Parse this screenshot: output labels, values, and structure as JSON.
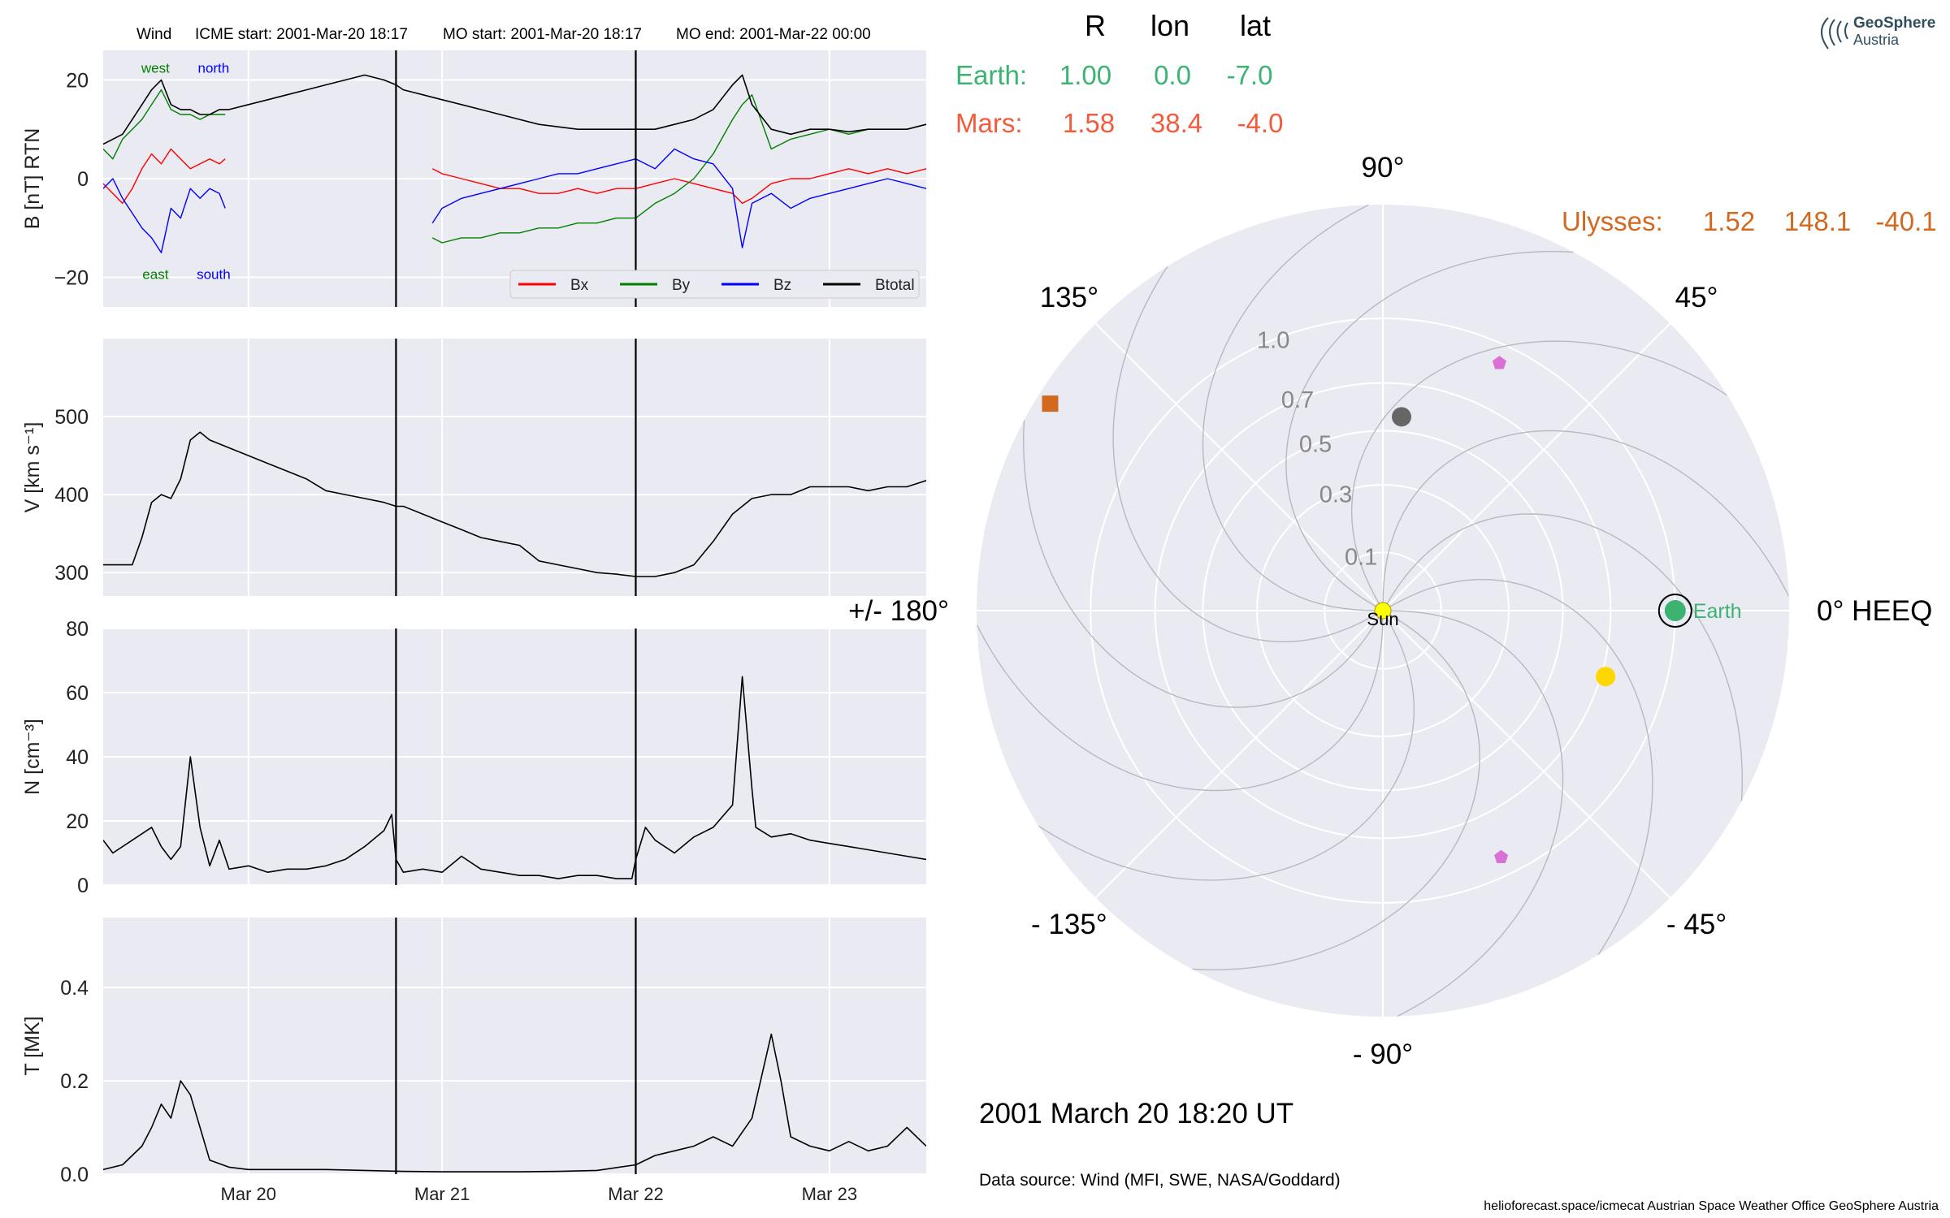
{
  "header": {
    "spacecraft": "Wind",
    "icme_start": "ICME start: 2001-Mar-20 18:17",
    "mo_start": "MO start: 2001-Mar-20 18:17",
    "mo_end": "MO end: 2001-Mar-22 00:00"
  },
  "logo": {
    "line1": "GeoSphere",
    "line2": "Austria"
  },
  "positions_table": {
    "headers": [
      "R",
      "lon",
      "lat"
    ],
    "rows": [
      {
        "name": "Earth:",
        "R": "1.00",
        "lon": "0.0",
        "lat": "-7.0",
        "color": "#3cb371"
      },
      {
        "name": "Mars:",
        "R": "1.58",
        "lon": "38.4",
        "lat": "-4.0",
        "color": "#f25c3c"
      },
      {
        "name": "Ulysses:",
        "R": "1.52",
        "lon": "148.1",
        "lat": "-40.1",
        "color": "#d2691e"
      }
    ]
  },
  "datetime": "2001 March 20  18:20 UT",
  "data_source": "Data source: Wind (MFI, SWE, NASA/Goddard)",
  "credits": "helioforecast.space/icmecat   Austrian Space Weather Office   GeoSphere Austria",
  "chart_data": [
    {
      "type": "line",
      "ylabel": "B [nT] RTN",
      "ylim": [
        -26,
        26
      ],
      "yticks": [
        -20,
        0,
        20
      ],
      "ytick_labels": [
        "−20",
        "0",
        "20"
      ],
      "x_unit": "days after 2001-Mar-19 00:00",
      "xlim": [
        0.25,
        4.5
      ],
      "xticks": [
        1,
        2,
        3,
        4
      ],
      "xtick_labels": [
        "Mar 20",
        "Mar 21",
        "Mar 22",
        "Mar 23"
      ],
      "vlines": [
        1.762,
        3.0
      ],
      "data_gap": [
        0.88,
        1.95
      ],
      "annotations": [
        {
          "text": "west",
          "x": 0.52,
          "y": 21.5,
          "color": "#008000"
        },
        {
          "text": "north",
          "x": 0.82,
          "y": 21.5,
          "color": "#0000ff"
        },
        {
          "text": "east",
          "x": 0.52,
          "y": -20.3,
          "color": "#008000"
        },
        {
          "text": "south",
          "x": 0.82,
          "y": -20.3,
          "color": "#0000ff"
        }
      ],
      "legend": "bottom-right",
      "series": [
        {
          "name": "Bx",
          "color": "#ff0000",
          "x": [
            0.25,
            0.3,
            0.35,
            0.4,
            0.45,
            0.5,
            0.55,
            0.6,
            0.65,
            0.7,
            0.75,
            0.8,
            0.85,
            0.88,
            1.95,
            2.0,
            2.1,
            2.2,
            2.3,
            2.4,
            2.5,
            2.6,
            2.7,
            2.8,
            2.9,
            3.0,
            3.1,
            3.2,
            3.3,
            3.4,
            3.5,
            3.55,
            3.6,
            3.7,
            3.8,
            3.9,
            4.0,
            4.1,
            4.2,
            4.3,
            4.4,
            4.5
          ],
          "values": [
            -1,
            -3,
            -5,
            -2,
            2,
            5,
            3,
            6,
            4,
            2,
            3,
            4,
            3,
            4,
            2,
            1,
            0,
            -1,
            -2,
            -2,
            -3,
            -3,
            -2,
            -3,
            -2,
            -2,
            -1,
            0,
            -1,
            -2,
            -3,
            -5,
            -4,
            -1,
            0,
            0,
            1,
            2,
            1,
            2,
            1,
            2
          ]
        },
        {
          "name": "By",
          "color": "#008000",
          "x": [
            0.25,
            0.3,
            0.35,
            0.4,
            0.45,
            0.5,
            0.55,
            0.6,
            0.65,
            0.7,
            0.75,
            0.8,
            0.85,
            0.88,
            1.95,
            2.0,
            2.1,
            2.2,
            2.3,
            2.4,
            2.5,
            2.6,
            2.7,
            2.8,
            2.9,
            3.0,
            3.1,
            3.2,
            3.3,
            3.4,
            3.5,
            3.55,
            3.6,
            3.7,
            3.8,
            3.9,
            4.0,
            4.1,
            4.2,
            4.3,
            4.4,
            4.5
          ],
          "values": [
            6,
            4,
            8,
            10,
            12,
            15,
            18,
            14,
            13,
            13,
            12,
            13,
            13,
            13,
            -12,
            -13,
            -12,
            -12,
            -11,
            -11,
            -10,
            -10,
            -9,
            -9,
            -8,
            -8,
            -5,
            -3,
            0,
            5,
            12,
            15,
            17,
            6,
            8,
            9,
            10,
            9,
            10,
            10,
            10,
            11
          ]
        },
        {
          "name": "Bz",
          "color": "#0000ff",
          "x": [
            0.25,
            0.3,
            0.35,
            0.4,
            0.45,
            0.5,
            0.55,
            0.6,
            0.65,
            0.7,
            0.75,
            0.8,
            0.85,
            0.88,
            1.95,
            2.0,
            2.1,
            2.2,
            2.3,
            2.4,
            2.5,
            2.6,
            2.7,
            2.8,
            2.9,
            3.0,
            3.1,
            3.2,
            3.3,
            3.4,
            3.5,
            3.55,
            3.6,
            3.7,
            3.8,
            3.9,
            4.0,
            4.1,
            4.2,
            4.3,
            4.4,
            4.5
          ],
          "values": [
            -2,
            0,
            -4,
            -7,
            -10,
            -12,
            -15,
            -6,
            -8,
            -2,
            -4,
            -2,
            -3,
            -6,
            -9,
            -6,
            -4,
            -3,
            -2,
            -1,
            0,
            1,
            1,
            2,
            3,
            4,
            2,
            6,
            4,
            3,
            -2,
            -14,
            -5,
            -3,
            -6,
            -4,
            -3,
            -2,
            -1,
            0,
            -1,
            -2
          ]
        },
        {
          "name": "Btotal",
          "color": "#000000",
          "x": [
            0.25,
            0.3,
            0.35,
            0.4,
            0.45,
            0.5,
            0.55,
            0.6,
            0.65,
            0.7,
            0.75,
            0.8,
            0.85,
            0.88,
            0.9,
            1.0,
            1.1,
            1.2,
            1.3,
            1.4,
            1.5,
            1.6,
            1.7,
            1.762,
            1.8,
            1.9,
            2.0,
            2.1,
            2.2,
            2.3,
            2.4,
            2.5,
            2.6,
            2.7,
            2.8,
            2.9,
            3.0,
            3.1,
            3.2,
            3.3,
            3.4,
            3.5,
            3.55,
            3.6,
            3.7,
            3.8,
            3.9,
            4.0,
            4.1,
            4.2,
            4.3,
            4.4,
            4.5
          ],
          "values": [
            7,
            8,
            9,
            12,
            15,
            18,
            20,
            15,
            14,
            14,
            13,
            13,
            14,
            14,
            14,
            15,
            16,
            17,
            18,
            19,
            20,
            21,
            20,
            19,
            18,
            17,
            16,
            15,
            14,
            13,
            12,
            11,
            10.5,
            10,
            10,
            10,
            10,
            10,
            11,
            12,
            14,
            19,
            21,
            15,
            10,
            9,
            10,
            10,
            9.5,
            10,
            10,
            10,
            11
          ]
        }
      ]
    },
    {
      "type": "line",
      "ylabel": "V [km s⁻¹]",
      "ylim": [
        270,
        600
      ],
      "yticks": [
        300,
        400,
        500
      ],
      "ytick_labels": [
        "300",
        "400",
        "500"
      ],
      "xlim": [
        0.25,
        4.5
      ],
      "xticks": [
        1,
        2,
        3,
        4
      ],
      "vlines": [
        1.762,
        3.0
      ],
      "series": [
        {
          "name": "V",
          "color": "#000000",
          "x": [
            0.25,
            0.4,
            0.45,
            0.5,
            0.55,
            0.6,
            0.65,
            0.7,
            0.75,
            0.8,
            0.9,
            1.0,
            1.1,
            1.2,
            1.3,
            1.4,
            1.5,
            1.6,
            1.7,
            1.762,
            1.8,
            1.9,
            2.0,
            2.1,
            2.2,
            2.3,
            2.4,
            2.5,
            2.6,
            2.7,
            2.8,
            2.9,
            3.0,
            3.1,
            3.2,
            3.3,
            3.4,
            3.5,
            3.6,
            3.7,
            3.8,
            3.9,
            4.0,
            4.1,
            4.2,
            4.3,
            4.4,
            4.5
          ],
          "values": [
            310,
            310,
            345,
            390,
            400,
            395,
            420,
            470,
            480,
            470,
            460,
            450,
            440,
            430,
            420,
            405,
            400,
            395,
            390,
            385,
            385,
            375,
            365,
            355,
            345,
            340,
            335,
            315,
            310,
            305,
            300,
            298,
            295,
            295,
            300,
            310,
            340,
            375,
            395,
            400,
            400,
            410,
            410,
            410,
            405,
            410,
            410,
            418
          ]
        }
      ]
    },
    {
      "type": "line",
      "ylabel": "N [cm⁻³]",
      "ylim": [
        0,
        80
      ],
      "yticks": [
        0,
        20,
        40,
        60,
        80
      ],
      "ytick_labels": [
        "0",
        "20",
        "40",
        "60",
        "80"
      ],
      "xlim": [
        0.25,
        4.5
      ],
      "xticks": [
        1,
        2,
        3,
        4
      ],
      "vlines": [
        1.762,
        3.0
      ],
      "series": [
        {
          "name": "N",
          "color": "#000000",
          "x": [
            0.25,
            0.3,
            0.4,
            0.5,
            0.55,
            0.6,
            0.65,
            0.7,
            0.75,
            0.8,
            0.85,
            0.9,
            1.0,
            1.1,
            1.2,
            1.3,
            1.4,
            1.5,
            1.6,
            1.7,
            1.74,
            1.762,
            1.8,
            1.9,
            2.0,
            2.1,
            2.2,
            2.3,
            2.4,
            2.5,
            2.6,
            2.7,
            2.8,
            2.9,
            2.98,
            3.0,
            3.05,
            3.1,
            3.2,
            3.3,
            3.4,
            3.5,
            3.55,
            3.6,
            3.62,
            3.7,
            3.8,
            3.9,
            4.0,
            4.1,
            4.2,
            4.3,
            4.4,
            4.5
          ],
          "values": [
            14,
            10,
            14,
            18,
            12,
            8,
            12,
            40,
            18,
            6,
            14,
            5,
            6,
            4,
            5,
            5,
            6,
            8,
            12,
            17,
            22,
            8,
            4,
            5,
            4,
            9,
            5,
            4,
            3,
            3,
            2,
            3,
            3,
            2,
            2,
            8,
            18,
            14,
            10,
            15,
            18,
            25,
            65,
            30,
            18,
            15,
            16,
            14,
            13,
            12,
            11,
            10,
            9,
            8
          ]
        }
      ]
    },
    {
      "type": "line",
      "ylabel": "T [MK]",
      "ylim": [
        0,
        0.55
      ],
      "yticks": [
        0,
        0.2,
        0.4
      ],
      "ytick_labels": [
        "0.0",
        "0.2",
        "0.4"
      ],
      "xlim": [
        0.25,
        4.5
      ],
      "xticks": [
        1,
        2,
        3,
        4
      ],
      "xtick_labels": [
        "Mar 20",
        "Mar 21",
        "Mar 22",
        "Mar 23"
      ],
      "vlines": [
        1.762,
        3.0
      ],
      "series": [
        {
          "name": "T",
          "color": "#000000",
          "x": [
            0.25,
            0.35,
            0.45,
            0.5,
            0.55,
            0.6,
            0.65,
            0.7,
            0.75,
            0.8,
            0.9,
            1.0,
            1.2,
            1.4,
            1.6,
            1.8,
            2.0,
            2.2,
            2.4,
            2.6,
            2.8,
            3.0,
            3.1,
            3.2,
            3.3,
            3.4,
            3.5,
            3.6,
            3.7,
            3.75,
            3.8,
            3.9,
            4.0,
            4.1,
            4.2,
            4.3,
            4.4,
            4.5
          ],
          "values": [
            0.01,
            0.02,
            0.06,
            0.1,
            0.15,
            0.12,
            0.2,
            0.17,
            0.1,
            0.03,
            0.015,
            0.01,
            0.01,
            0.01,
            0.008,
            0.006,
            0.005,
            0.005,
            0.005,
            0.006,
            0.008,
            0.02,
            0.04,
            0.05,
            0.06,
            0.08,
            0.06,
            0.12,
            0.3,
            0.2,
            0.08,
            0.06,
            0.05,
            0.07,
            0.05,
            0.06,
            0.1,
            0.06
          ]
        }
      ]
    },
    {
      "type": "scatter",
      "subtype": "polar",
      "angle_ticks": [
        0,
        45,
        90,
        135,
        180,
        -135,
        -90,
        -45
      ],
      "angle_tick_labels": [
        "0° HEEQ",
        "45°",
        "90°",
        "135°",
        "+/- 180°",
        "- 135°",
        "- 90°",
        "- 45°"
      ],
      "radial_ticks": [
        0.1,
        0.3,
        0.5,
        0.7,
        1.0
      ],
      "radial_tick_labels": [
        "0.1",
        "0.3",
        "0.5",
        "0.7",
        "1.0"
      ],
      "rlim": [
        0,
        1.6
      ],
      "r_scale": "power 0.7",
      "points": [
        {
          "label": "Sun",
          "lon": 0,
          "r": 0,
          "color": "#ffff00",
          "marker": "circle"
        },
        {
          "label": "Earth",
          "lon": 0,
          "r": 1.0,
          "color": "#3cb371",
          "marker": "circle"
        },
        {
          "lon": 148.1,
          "r": 1.52,
          "color": "#d2691e",
          "marker": "square"
        },
        {
          "lon": 84.5,
          "r": 0.56,
          "color": "#666666",
          "marker": "circle"
        },
        {
          "lon": -16.5,
          "r": 0.72,
          "color": "#ffd700",
          "marker": "circle"
        },
        {
          "lon": 64.8,
          "r": 0.91,
          "color": "#da70d6",
          "marker": "pentagon"
        },
        {
          "lon": -64.4,
          "r": 0.91,
          "color": "#da70d6",
          "marker": "pentagon"
        }
      ]
    }
  ]
}
